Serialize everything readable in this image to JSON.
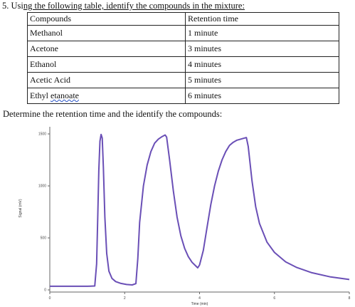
{
  "question": {
    "number_prefix": "5. Usi",
    "underlined_part": "ng the following table, identify the compounds in the mixture:",
    "suffix": ""
  },
  "table": {
    "headers": [
      "Compounds",
      "Retention time"
    ],
    "rows": [
      [
        "Methanol",
        "1 minute"
      ],
      [
        "Acetone",
        "3 minutes"
      ],
      [
        "Ethanol",
        "4 minutes"
      ],
      [
        "Acetic Acid",
        "5 minutes"
      ],
      [
        "Ethyl etanoate",
        "6 minutes"
      ]
    ],
    "misspelled_word": "etanoate"
  },
  "prompt": "Determine the retention time and the identify the compounds:",
  "chart_data": {
    "type": "line",
    "xlabel": "Time (min)",
    "ylabel": "Signal (mV)",
    "xlim": [
      0,
      8
    ],
    "ylim": [
      0,
      1500
    ],
    "x_ticks": [
      "0",
      "2",
      "4",
      "6",
      "8"
    ],
    "y_ticks": [
      "0",
      "500",
      "1000",
      "1500"
    ],
    "grid": false,
    "line_color": "#6a4fb6",
    "series": [
      {
        "x": [
          0.0,
          0.5,
          1.0,
          1.2,
          1.25,
          1.28,
          1.31,
          1.34,
          1.37,
          1.4,
          1.43,
          1.47,
          1.52,
          1.58,
          1.66,
          1.76,
          1.9,
          2.05,
          2.2,
          2.3,
          2.35,
          2.4,
          2.5,
          2.6,
          2.7,
          2.8,
          2.9,
          3.0,
          3.08,
          3.12,
          3.2,
          3.3,
          3.4,
          3.5,
          3.6,
          3.7,
          3.8,
          3.9,
          3.95,
          4.0,
          4.1,
          4.2,
          4.3,
          4.4,
          4.5,
          4.6,
          4.7,
          4.8,
          4.9,
          5.0,
          5.1,
          5.2,
          5.25,
          5.3,
          5.4,
          5.5,
          5.6,
          5.8,
          6.0,
          6.3,
          6.6,
          7.0,
          7.5,
          8.0
        ],
        "y": [
          35,
          35,
          35,
          38,
          250,
          700,
          1150,
          1430,
          1495,
          1460,
          1180,
          700,
          350,
          180,
          110,
          80,
          62,
          52,
          48,
          60,
          300,
          650,
          1000,
          1200,
          1330,
          1410,
          1450,
          1475,
          1490,
          1470,
          1250,
          950,
          700,
          520,
          400,
          320,
          265,
          230,
          212,
          240,
          380,
          600,
          820,
          1000,
          1140,
          1250,
          1330,
          1390,
          1420,
          1440,
          1450,
          1460,
          1465,
          1380,
          1050,
          800,
          640,
          460,
          360,
          270,
          215,
          165,
          125,
          100
        ]
      }
    ]
  }
}
